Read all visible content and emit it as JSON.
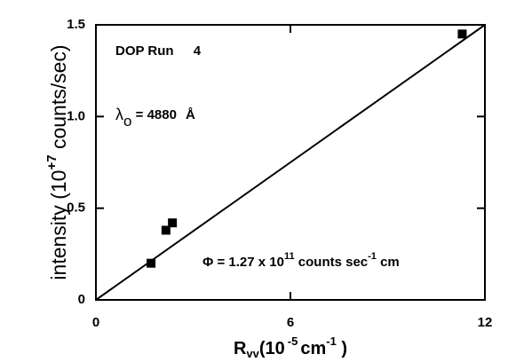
{
  "chart_data": {
    "type": "scatter",
    "annotations": [
      {
        "parts": [
          "DOP Run",
          "4"
        ]
      },
      {
        "parts": [
          "λ",
          "o",
          " = 4880",
          "Å"
        ]
      },
      {
        "parts": [
          "Φ = 1.27 x 10",
          "11",
          " counts sec",
          "-1",
          " cm"
        ]
      }
    ],
    "ylabel": {
      "parts": [
        "intensity (10",
        "+7",
        " counts/sec)"
      ]
    },
    "xlabel": {
      "parts": [
        "R",
        "vv",
        "(10",
        "-5",
        "cm",
        "-1",
        " )"
      ]
    },
    "points": {
      "x": [
        1.7,
        2.16,
        2.36,
        11.3
      ],
      "y": [
        0.2,
        0.38,
        0.42,
        1.45
      ]
    },
    "fit": {
      "x": [
        0,
        12
      ],
      "y": [
        0,
        1.5
      ]
    },
    "color": "#000000",
    "xlim": [
      0,
      12
    ],
    "xticks": [
      0,
      6,
      12
    ],
    "ylim": [
      0,
      1.5
    ],
    "yticks": [
      0,
      0.5,
      {
        "value": 1,
        "label": "1.0"
      },
      1.5
    ]
  }
}
